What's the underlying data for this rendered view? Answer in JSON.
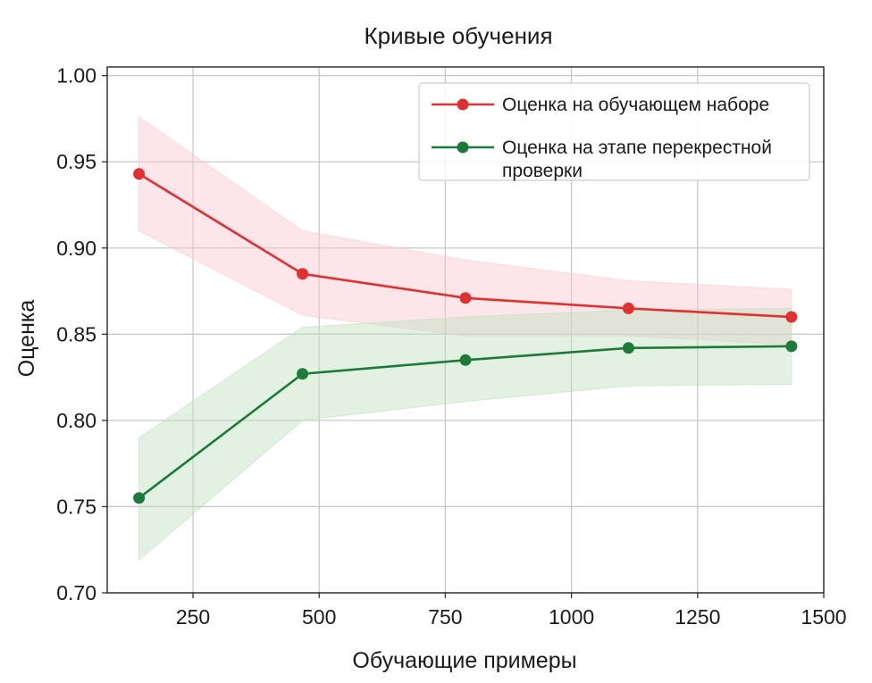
{
  "chart_data": {
    "type": "line",
    "title": "Кривые обучения",
    "xlabel": "Обучающие примеры",
    "ylabel": "Оценка",
    "xlim": [
      80,
      1500
    ],
    "ylim": [
      0.7,
      1.005
    ],
    "xticks": [
      250,
      500,
      750,
      1000,
      1250,
      1500
    ],
    "yticks": [
      0.7,
      0.75,
      0.8,
      0.85,
      0.9,
      0.95,
      1.0
    ],
    "xtick_labels": [
      "250",
      "500",
      "750",
      "1000",
      "1250",
      "1500"
    ],
    "ytick_labels": [
      "0.70",
      "0.75",
      "0.80",
      "0.85",
      "0.90",
      "0.95",
      "1.00"
    ],
    "grid": true,
    "legend_position": "top-right",
    "x": [
      143,
      467,
      790,
      1113,
      1436
    ],
    "series": [
      {
        "name": "Оценка на обучающем наборе",
        "color": "#e03030",
        "band_color": "#f8c8d0",
        "values": [
          0.943,
          0.885,
          0.871,
          0.865,
          0.86
        ],
        "upper": [
          0.976,
          0.91,
          0.893,
          0.881,
          0.876
        ],
        "lower": [
          0.91,
          0.861,
          0.849,
          0.849,
          0.844
        ]
      },
      {
        "name": "Оценка на этапе перекрестной проверки",
        "color": "#1e7a3a",
        "band_color": "#bfe0bf",
        "values": [
          0.755,
          0.827,
          0.835,
          0.842,
          0.843
        ],
        "upper": [
          0.79,
          0.854,
          0.86,
          0.864,
          0.865
        ],
        "lower": [
          0.719,
          0.8,
          0.811,
          0.82,
          0.821
        ]
      }
    ]
  }
}
